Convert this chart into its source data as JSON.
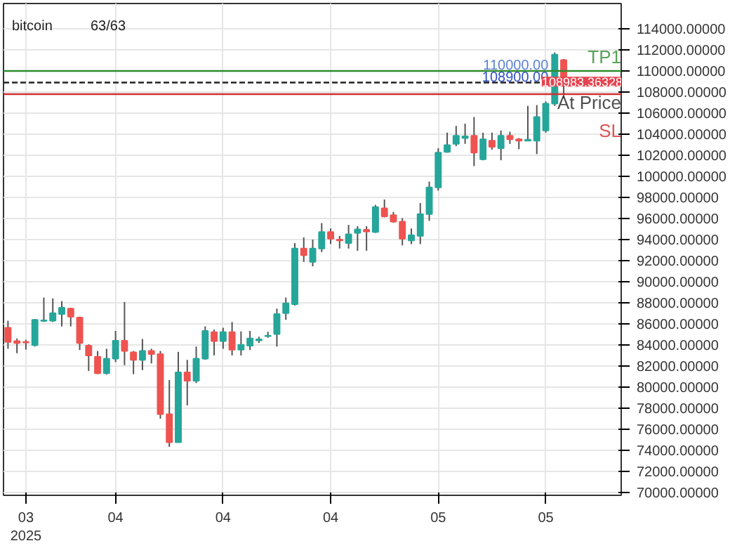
{
  "chart_data": {
    "type": "candlestick",
    "title": "bitcoin",
    "subtitle": "63/63",
    "x": [
      "2025-03-22",
      "2025-03-23",
      "2025-03-24",
      "2025-03-25",
      "2025-03-26",
      "2025-03-27",
      "2025-03-28",
      "2025-03-29",
      "2025-03-30",
      "2025-03-31",
      "2025-04-01",
      "2025-04-02",
      "2025-04-03",
      "2025-04-04",
      "2025-04-05",
      "2025-04-06",
      "2025-04-07",
      "2025-04-08",
      "2025-04-09",
      "2025-04-10",
      "2025-04-11",
      "2025-04-12",
      "2025-04-13",
      "2025-04-14",
      "2025-04-15",
      "2025-04-16",
      "2025-04-17",
      "2025-04-18",
      "2025-04-19",
      "2025-04-20",
      "2025-04-21",
      "2025-04-22",
      "2025-04-23",
      "2025-04-24",
      "2025-04-25",
      "2025-04-26",
      "2025-04-27",
      "2025-04-28",
      "2025-04-29",
      "2025-04-30",
      "2025-05-01",
      "2025-05-02",
      "2025-05-03",
      "2025-05-04",
      "2025-05-05",
      "2025-05-06",
      "2025-05-07",
      "2025-05-08",
      "2025-05-09",
      "2025-05-10",
      "2025-05-11",
      "2025-05-12",
      "2025-05-13",
      "2025-05-14",
      "2025-05-15",
      "2025-05-16",
      "2025-05-17",
      "2025-05-18",
      "2025-05-19",
      "2025-05-20",
      "2025-05-21",
      "2025-05-22",
      "2025-05-23"
    ],
    "ohlc": [
      [
        85640,
        86310,
        83650,
        84290
      ],
      [
        84370,
        84620,
        83230,
        84200
      ],
      [
        84300,
        84500,
        83570,
        84250
      ],
      [
        83990,
        86480,
        83860,
        86400
      ],
      [
        86300,
        88510,
        86190,
        86350
      ],
      [
        86310,
        88430,
        86190,
        87030
      ],
      [
        86950,
        88170,
        85770,
        87540
      ],
      [
        87460,
        87540,
        85770,
        86700
      ],
      [
        86610,
        86700,
        83530,
        84200
      ],
      [
        83950,
        84070,
        81540,
        83020
      ],
      [
        82890,
        83440,
        81240,
        81330
      ],
      [
        81330,
        83650,
        81200,
        82720
      ],
      [
        82720,
        85340,
        82390,
        84410
      ],
      [
        84410,
        88090,
        82090,
        83440
      ],
      [
        83310,
        83440,
        81240,
        82600
      ],
      [
        82600,
        84580,
        81620,
        83440
      ],
      [
        83440,
        83650,
        82260,
        83150
      ],
      [
        83150,
        83440,
        77020,
        77440
      ],
      [
        77440,
        80690,
        74350,
        74780
      ],
      [
        74780,
        83360,
        74780,
        81410
      ],
      [
        81410,
        82600,
        78280,
        80610
      ],
      [
        80610,
        83860,
        80400,
        82720
      ],
      [
        82720,
        85770,
        82600,
        85340
      ],
      [
        85220,
        85470,
        83020,
        84370
      ],
      [
        84370,
        85640,
        83650,
        85220
      ],
      [
        85220,
        86190,
        83020,
        83570
      ],
      [
        83570,
        85300,
        83020,
        84030
      ],
      [
        83950,
        85340,
        83530,
        84620
      ],
      [
        84450,
        84790,
        84200,
        84540
      ],
      [
        84850,
        85260,
        84700,
        84900
      ],
      [
        85050,
        87460,
        83860,
        86950
      ],
      [
        87030,
        88510,
        86400,
        87960
      ],
      [
        87880,
        93670,
        87750,
        93160
      ],
      [
        93160,
        94220,
        91890,
        92530
      ],
      [
        91890,
        94010,
        91470,
        93160
      ],
      [
        93160,
        95570,
        92820,
        94730
      ],
      [
        94730,
        95060,
        93580,
        94090
      ],
      [
        94010,
        94350,
        93160,
        93920
      ],
      [
        93670,
        95400,
        93160,
        94510
      ],
      [
        94640,
        95280,
        92950,
        94980
      ],
      [
        94940,
        95280,
        92950,
        94770
      ],
      [
        94730,
        97300,
        94640,
        97090
      ],
      [
        96970,
        97810,
        96120,
        96210
      ],
      [
        96330,
        96630,
        95610,
        95700
      ],
      [
        95700,
        96040,
        93460,
        94090
      ],
      [
        93920,
        95060,
        93580,
        94430
      ],
      [
        94350,
        97470,
        93580,
        96420
      ],
      [
        96420,
        99500,
        95780,
        98950
      ],
      [
        98950,
        102670,
        98660,
        102250
      ],
      [
        102330,
        104150,
        102250,
        102970
      ],
      [
        103090,
        104790,
        102880,
        103860
      ],
      [
        103640,
        105000,
        103090,
        103810
      ],
      [
        103860,
        105630,
        100980,
        102250
      ],
      [
        101620,
        104150,
        101530,
        103520
      ],
      [
        103390,
        104150,
        102540,
        102800
      ],
      [
        102670,
        104360,
        101530,
        103860
      ],
      [
        103860,
        104240,
        103090,
        103520
      ],
      [
        103520,
        103640,
        102590,
        103390
      ],
      [
        103390,
        106690,
        103390,
        103480
      ],
      [
        103390,
        106770,
        102120,
        105630
      ],
      [
        104360,
        107110,
        104150,
        106900
      ],
      [
        106900,
        111760,
        106690,
        111550
      ],
      [
        111040,
        111130,
        107450,
        108983.36328
      ]
    ],
    "colors": [
      "#ef5350",
      "#ef5350",
      "#ef5350",
      "#26a69a",
      "#26a69a",
      "#26a69a",
      "#26a69a",
      "#ef5350",
      "#ef5350",
      "#ef5350",
      "#ef5350",
      "#26a69a",
      "#26a69a",
      "#ef5350",
      "#ef5350",
      "#26a69a",
      "#ef5350",
      "#ef5350",
      "#ef5350",
      "#26a69a",
      "#ef5350",
      "#26a69a",
      "#26a69a",
      "#ef5350",
      "#26a69a",
      "#ef5350",
      "#26a69a",
      "#26a69a",
      "#26a69a",
      "#26a69a",
      "#26a69a",
      "#26a69a",
      "#26a69a",
      "#ef5350",
      "#26a69a",
      "#26a69a",
      "#ef5350",
      "#ef5350",
      "#26a69a",
      "#26a69a",
      "#ef5350",
      "#26a69a",
      "#ef5350",
      "#ef5350",
      "#ef5350",
      "#26a69a",
      "#26a69a",
      "#26a69a",
      "#26a69a",
      "#26a69a",
      "#26a69a",
      "#26a69a",
      "#ef5350",
      "#26a69a",
      "#ef5350",
      "#26a69a",
      "#ef5350",
      "#ef5350",
      "#26a69a",
      "#26a69a",
      "#26a69a",
      "#26a69a",
      "#ef5350"
    ],
    "xlim": [
      "2025-03-21T12:00",
      "2025-05-29T10:00"
    ],
    "xticks": [
      {
        "value": "2025-03-24",
        "label": "03\n2025"
      },
      {
        "value": "2025-04-03",
        "label": "04"
      },
      {
        "value": "2025-04-15",
        "label": "04"
      },
      {
        "value": "2025-04-27",
        "label": "04"
      },
      {
        "value": "2025-05-09",
        "label": "05"
      },
      {
        "value": "2025-05-21",
        "label": "05"
      }
    ],
    "ylim": [
      69750,
      116400
    ],
    "yticks": [
      {
        "value": 70000,
        "label": "70000.00000"
      },
      {
        "value": 72000,
        "label": "72000.00000"
      },
      {
        "value": 74000,
        "label": "74000.00000"
      },
      {
        "value": 76000,
        "label": "76000.00000"
      },
      {
        "value": 78000,
        "label": "78000.00000"
      },
      {
        "value": 80000,
        "label": "80000.00000"
      },
      {
        "value": 82000,
        "label": "82000.00000"
      },
      {
        "value": 84000,
        "label": "84000.00000"
      },
      {
        "value": 86000,
        "label": "86000.00000"
      },
      {
        "value": 88000,
        "label": "88000.00000"
      },
      {
        "value": 90000,
        "label": "90000.00000"
      },
      {
        "value": 92000,
        "label": "92000.00000"
      },
      {
        "value": 94000,
        "label": "94000.00000"
      },
      {
        "value": 96000,
        "label": "96000.00000"
      },
      {
        "value": 98000,
        "label": "98000.00000"
      },
      {
        "value": 100000,
        "label": "100000.00000"
      },
      {
        "value": 102000,
        "label": "102000.00000"
      },
      {
        "value": 104000,
        "label": "104000.00000"
      },
      {
        "value": 106000,
        "label": "106000.00000"
      },
      {
        "value": 108000,
        "label": "108000.00000"
      },
      {
        "value": 110000,
        "label": "110000.00000"
      },
      {
        "value": 112000,
        "label": "112000.00000"
      },
      {
        "value": 114000,
        "label": "114000.00000"
      }
    ],
    "grid": true,
    "ref_lines": [
      {
        "axis": "y",
        "value": 110000,
        "label": "TP1",
        "color": "#2e8b2e",
        "line_style": "solid"
      },
      {
        "axis": "y",
        "value": 108900,
        "label": "At Price",
        "color": "#222222",
        "line_style": "dashed"
      },
      {
        "axis": "y",
        "value": 107800,
        "label": "SL",
        "color": "#d03030",
        "line_style": "solid"
      }
    ],
    "annotations": [
      {
        "text": "110000.00",
        "y": 110000
      },
      {
        "text": "108900.00",
        "y": 108900
      },
      {
        "text": "108983.36328",
        "y": 108983.36328
      }
    ]
  }
}
